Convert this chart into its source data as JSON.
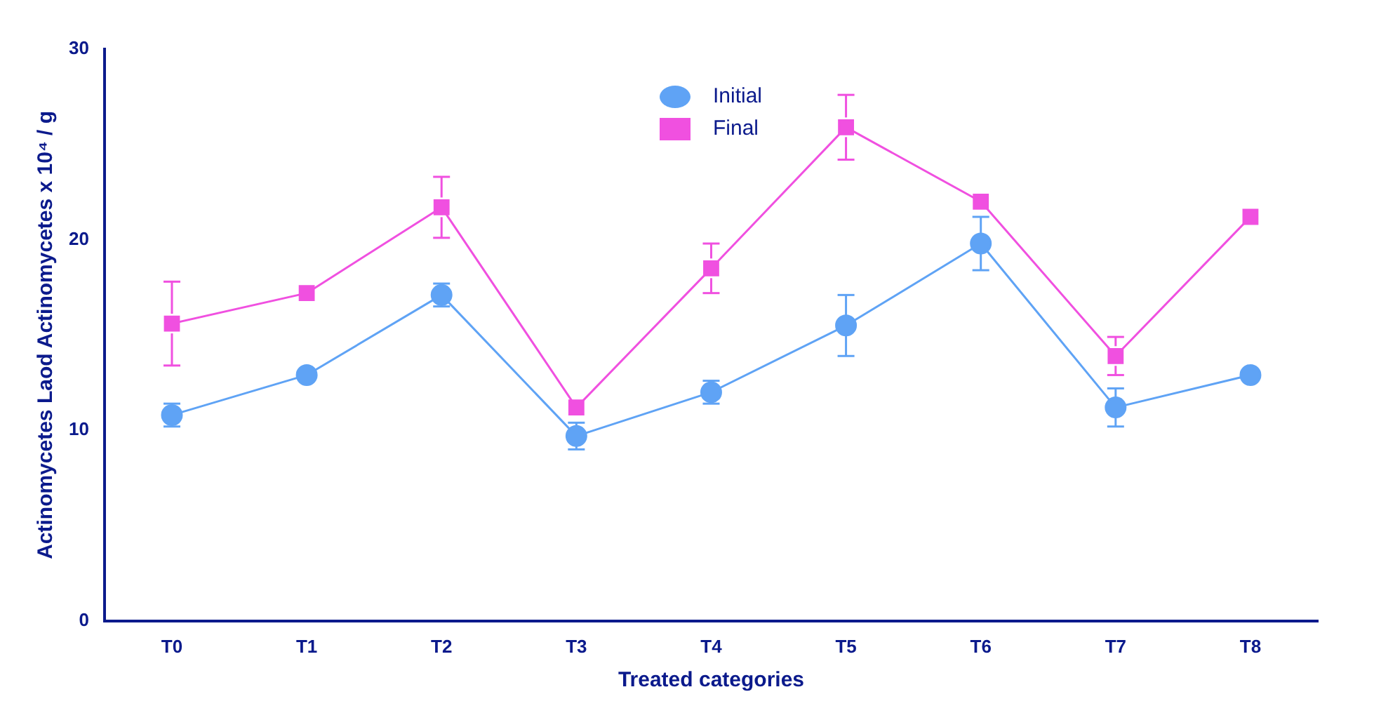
{
  "chart_data": {
    "type": "line",
    "xlabel": "Treated categories",
    "ylabel": "Actinomycetes Laod Actinomycetes x 10⁴ / g",
    "categories": [
      "T0",
      "T1",
      "T2",
      "T3",
      "T4",
      "T5",
      "T6",
      "T7",
      "T8"
    ],
    "ylim": [
      0,
      30
    ],
    "yticks": [
      0,
      10,
      20,
      30
    ],
    "grid": false,
    "legend": "top",
    "line_style": "solid",
    "series": [
      {
        "name": "Initial",
        "color": "#5fa3f5",
        "marker": "circle",
        "values": [
          10.8,
          12.9,
          17.1,
          9.7,
          12.0,
          15.5,
          19.8,
          11.2,
          12.9
        ],
        "errors": [
          0.6,
          null,
          0.6,
          0.7,
          0.6,
          1.6,
          1.4,
          1.0,
          null
        ]
      },
      {
        "name": "Final",
        "color": "#f050e0",
        "marker": "square",
        "values": [
          15.6,
          17.2,
          21.7,
          11.2,
          18.5,
          25.9,
          22.0,
          13.9,
          21.2
        ],
        "errors": [
          2.2,
          null,
          1.6,
          null,
          1.3,
          1.7,
          null,
          1.0,
          null
        ]
      }
    ]
  }
}
